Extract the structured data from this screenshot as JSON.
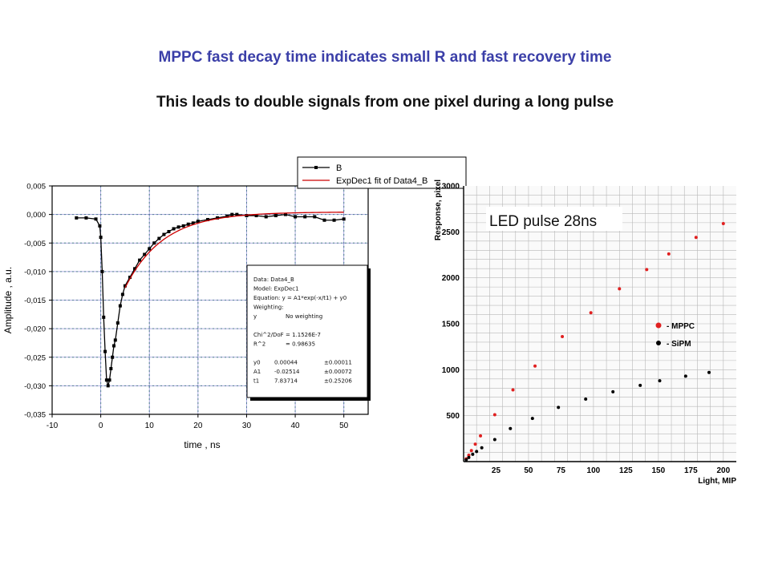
{
  "header": {
    "title": "MPPC fast decay time indicates small R and fast recovery time",
    "subtitle": "This leads to double signals from one pixel during a long pulse"
  },
  "chart_data": [
    {
      "type": "scatter",
      "xlabel": "time , ns",
      "ylabel": "Amplitude , a.u.",
      "xlim": [
        -10,
        55
      ],
      "ylim": [
        -0.035,
        0.005
      ],
      "x_ticks": [
        "-10",
        "0",
        "10",
        "20",
        "30",
        "40",
        "50"
      ],
      "y_ticks": [
        "0,005",
        "0,000",
        "-0,005",
        "-0,010",
        "-0,015",
        "-0,020",
        "-0,025",
        "-0,030",
        "-0,035"
      ],
      "grid": true,
      "legend": {
        "position": "top-right",
        "entries": [
          "B",
          "ExpDec1 fit of Data4_B"
        ]
      },
      "colors": {
        "data": "#000000",
        "fit": "#cc0000",
        "grid": "#2e8b57"
      },
      "series": [
        {
          "name": "B",
          "x": [
            -5.0,
            -3.0,
            -1.0,
            -0.2,
            0.0,
            0.3,
            0.6,
            0.9,
            1.2,
            1.5,
            1.8,
            2.1,
            2.4,
            2.7,
            3.0,
            3.5,
            4.0,
            4.5,
            5.0,
            6.0,
            7.0,
            8.0,
            9.0,
            10.0,
            11.0,
            12.0,
            13.0,
            14.0,
            15.0,
            16.0,
            17.0,
            18.0,
            19.0,
            20.0,
            22.0,
            24.0,
            26.0,
            27.0,
            28.0,
            30.0,
            32.0,
            34.0,
            36.0,
            38.0,
            40.0,
            42.0,
            44.0,
            46.0,
            48.0,
            50.0
          ],
          "y": [
            -0.0006,
            -0.0006,
            -0.0008,
            -0.002,
            -0.004,
            -0.01,
            -0.018,
            -0.024,
            -0.029,
            -0.03,
            -0.029,
            -0.027,
            -0.025,
            -0.023,
            -0.022,
            -0.019,
            -0.016,
            -0.014,
            -0.0125,
            -0.011,
            -0.0095,
            -0.008,
            -0.007,
            -0.006,
            -0.005,
            -0.0042,
            -0.0035,
            -0.003,
            -0.0025,
            -0.0022,
            -0.002,
            -0.0017,
            -0.0015,
            -0.0012,
            -0.0009,
            -0.0006,
            -0.0003,
            0.0,
            0.0,
            -0.0002,
            -0.0002,
            -0.0004,
            -0.0002,
            0.0,
            -0.0004,
            -0.0004,
            -0.0004,
            -0.001,
            -0.001,
            -0.0008
          ]
        },
        {
          "name": "ExpDec1 fit of Data4_B",
          "model": "y = A1*exp(-x/t1) + y0",
          "params": {
            "y0": 0.00044,
            "A1": -0.02514,
            "t1": 7.83714
          },
          "x_range": [
            5,
            50
          ]
        }
      ],
      "fit_box": {
        "lines": [
          {
            "label": "Data: Data4_B",
            "value": "",
            "err": ""
          },
          {
            "label": "Model: ExpDec1",
            "value": "",
            "err": ""
          },
          {
            "label": "Equation: y = A1*exp(-x/t1) + y0",
            "value": "",
            "err": ""
          },
          {
            "label": "Weighting:",
            "value": "",
            "err": ""
          },
          {
            "label": "y",
            "value": "No weighting",
            "err": ""
          },
          {
            "label": "",
            "value": "",
            "err": ""
          },
          {
            "label": "Chi^2/DoF",
            "value": "= 1.1526E-7",
            "err": ""
          },
          {
            "label": "R^2",
            "value": "= 0.98635",
            "err": ""
          },
          {
            "label": "",
            "value": "",
            "err": ""
          },
          {
            "label": "y0",
            "value": "0.00044",
            "err": "±0.00011"
          },
          {
            "label": "A1",
            "value": "-0.02514",
            "err": "±0.00072"
          },
          {
            "label": "t1",
            "value": "7.83714",
            "err": "±0.25206"
          }
        ]
      }
    },
    {
      "type": "scatter",
      "xlabel": "Light, MIP",
      "ylabel": "Response, pixel",
      "annotation": "LED pulse 28ns",
      "xlim": [
        0,
        210
      ],
      "ylim": [
        0,
        3000
      ],
      "x_ticks": [
        "25",
        "50",
        "75",
        "100",
        "125",
        "150",
        "175",
        "200"
      ],
      "y_ticks": [
        "500",
        "1000",
        "1500",
        "2000",
        "2500",
        "3000"
      ],
      "grid": true,
      "legend": {
        "position": "right",
        "entries": [
          "- MPPC",
          "- SiPM"
        ]
      },
      "colors": {
        "MPPC": "#e02020",
        "SiPM": "#000000",
        "grid": "#b8b8b8"
      },
      "series": [
        {
          "name": "MPPC",
          "x": [
            2,
            4,
            6,
            9,
            13,
            24,
            38,
            55,
            76,
            98,
            120,
            141,
            158,
            179,
            200
          ],
          "y": [
            30,
            70,
            120,
            190,
            280,
            510,
            780,
            1040,
            1360,
            1620,
            1880,
            2090,
            2260,
            2440,
            2590
          ]
        },
        {
          "name": "SiPM",
          "x": [
            2,
            4,
            7,
            10,
            14,
            24,
            36,
            53,
            73,
            94,
            115,
            136,
            151,
            171,
            189
          ],
          "y": [
            20,
            45,
            80,
            110,
            150,
            240,
            360,
            470,
            590,
            680,
            760,
            830,
            880,
            930,
            970
          ]
        }
      ]
    }
  ]
}
